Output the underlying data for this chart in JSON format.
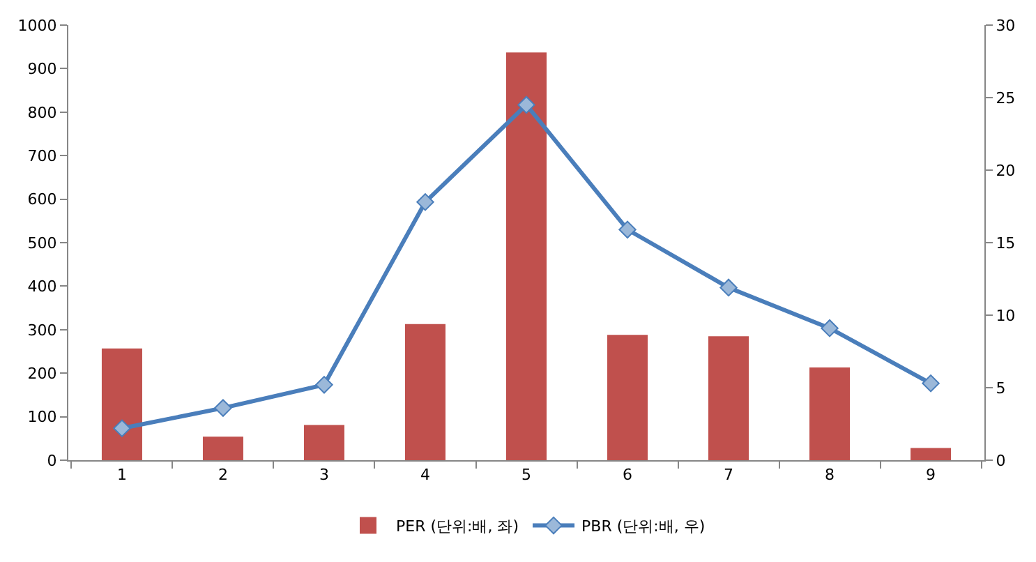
{
  "chart_data": {
    "type": "bar",
    "categories": [
      "1",
      "2",
      "3",
      "4",
      "5",
      "6",
      "7",
      "8",
      "9"
    ],
    "series": [
      {
        "name": "PER (단위:배, 좌)",
        "color": "#c0504d",
        "values": [
          257,
          54,
          81,
          313,
          937,
          288,
          285,
          213,
          28
        ]
      },
      {
        "name": "PBR (단위:배, 우)",
        "type": "line",
        "axis": "y2",
        "color": "#4a7ebb",
        "values": [
          2.2,
          3.6,
          5.2,
          17.8,
          24.5,
          15.9,
          11.9,
          9.1,
          5.3
        ]
      }
    ],
    "ylim": [
      0,
      1000
    ],
    "yticks": [
      0,
      100,
      200,
      300,
      400,
      500,
      600,
      700,
      800,
      900,
      1000
    ],
    "y2lim": [
      0,
      30
    ],
    "y2ticks": [
      0,
      5,
      10,
      15,
      20,
      25,
      30
    ],
    "legend": "bottom",
    "marker": "diamond"
  }
}
